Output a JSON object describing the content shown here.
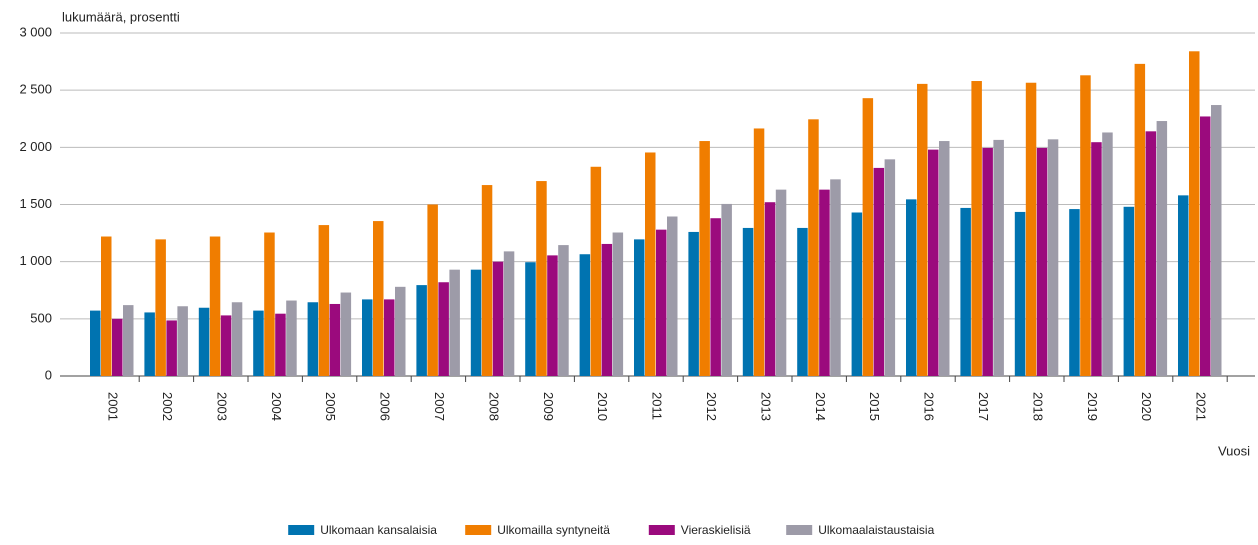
{
  "chart_data": {
    "type": "bar",
    "y_label": "lukumäärä, prosentti",
    "x_label": "Vuosi",
    "categories": [
      "2001",
      "2002",
      "2003",
      "2004",
      "2005",
      "2006",
      "2007",
      "2008",
      "2009",
      "2010",
      "2011",
      "2012",
      "2013",
      "2014",
      "2015",
      "2016",
      "2017",
      "2018",
      "2019",
      "2020",
      "2021"
    ],
    "series": [
      {
        "name": "Ulkomaan kansalaisia",
        "color": "#0073b0",
        "values": [
          572,
          556,
          597,
          572,
          645,
          670,
          795,
          930,
          995,
          1065,
          1195,
          1260,
          1295,
          1295,
          1430,
          1545,
          1470,
          1435,
          1460,
          1480,
          1580
        ]
      },
      {
        "name": "Ulkomailla syntyneitä",
        "color": "#f07d00",
        "values": [
          1220,
          1195,
          1220,
          1255,
          1320,
          1355,
          1500,
          1670,
          1705,
          1830,
          1955,
          2055,
          2165,
          2245,
          2430,
          2555,
          2580,
          2565,
          2630,
          2730,
          2840
        ]
      },
      {
        "name": "Vieraskielisiä",
        "color": "#9b0a7d",
        "values": [
          500,
          486,
          530,
          545,
          630,
          670,
          820,
          1000,
          1055,
          1155,
          1280,
          1380,
          1520,
          1630,
          1820,
          1980,
          1995,
          1995,
          2045,
          2140,
          2270
        ]
      },
      {
        "name": "Ulkomaalaistaustaisia",
        "color": "#9d9ba8",
        "values": [
          620,
          610,
          645,
          660,
          730,
          780,
          930,
          1090,
          1145,
          1255,
          1395,
          1505,
          1630,
          1720,
          1895,
          2055,
          2065,
          2070,
          2130,
          2230,
          2370
        ]
      }
    ],
    "ylim": [
      0,
      3000
    ],
    "yticks": [
      0,
      500,
      {
        "value": 1000,
        "label": "1 000"
      },
      {
        "value": 1500,
        "label": "1 500"
      },
      {
        "value": 2000,
        "label": "2 000"
      },
      {
        "value": 2500,
        "label": "2 500"
      },
      {
        "value": 3000,
        "label": "3 000"
      }
    ],
    "grid": true
  }
}
